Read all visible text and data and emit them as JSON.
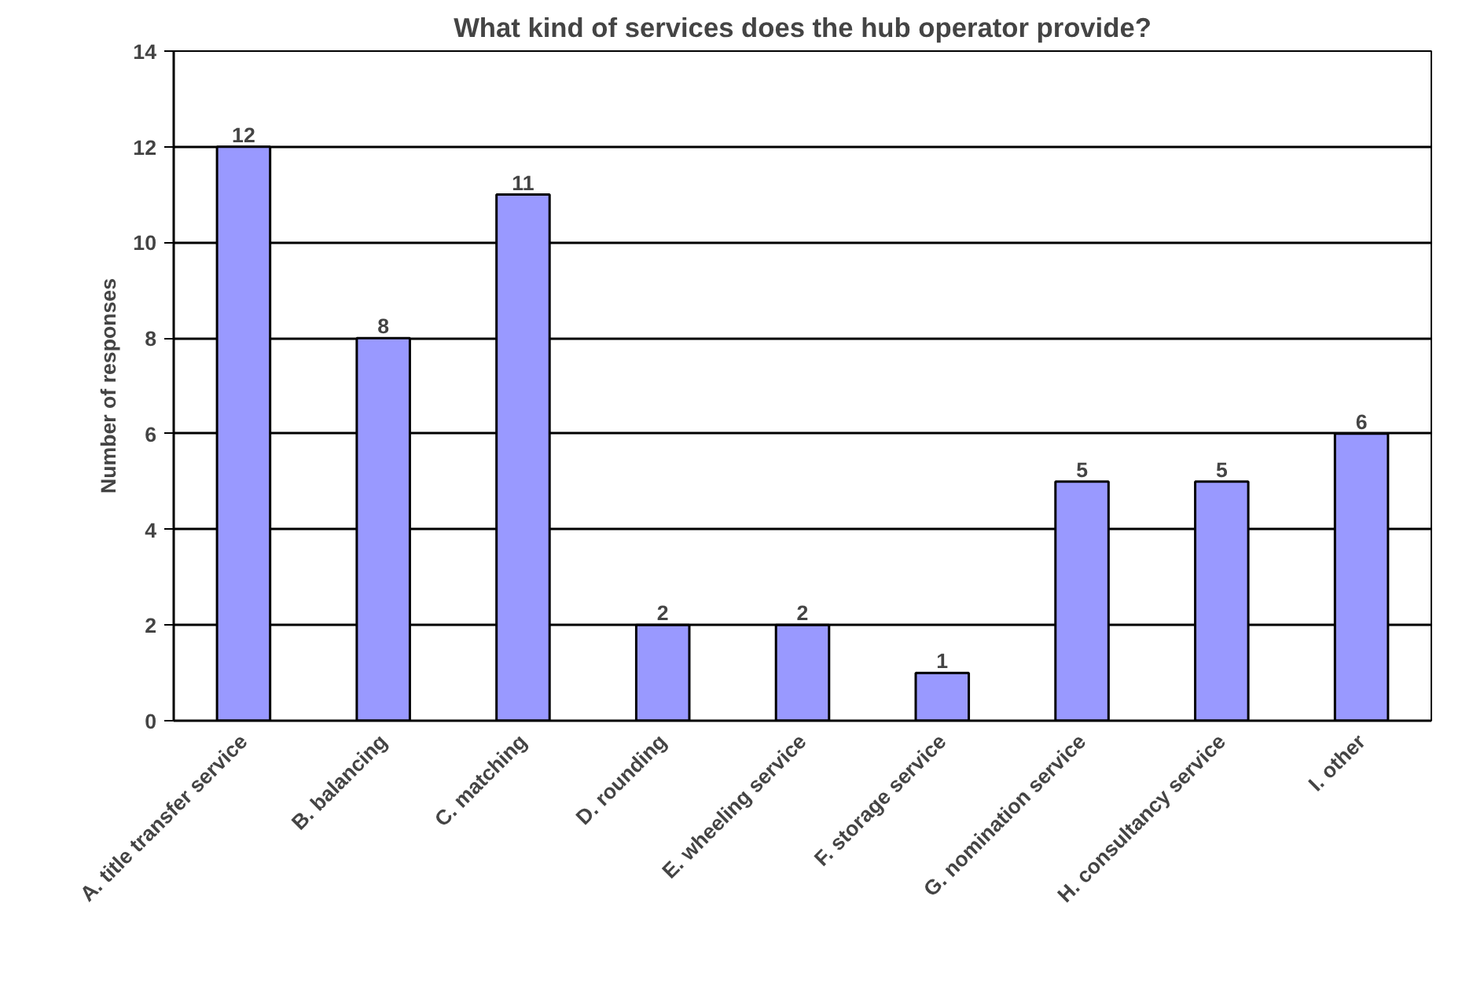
{
  "chart_data": {
    "type": "bar",
    "title": "What kind of services does the hub operator provide?",
    "ylabel": "Number of responses",
    "categories": [
      "A. title transfer service",
      "B. balancing",
      "C. matching",
      "D. rounding",
      "E. wheeling service",
      "F. storage service",
      "G. nomination service",
      "H. consultancy service",
      "I. other"
    ],
    "values": [
      12,
      8,
      11,
      2,
      2,
      1,
      5,
      5,
      6
    ],
    "color": "#9999ff",
    "ylim": [
      0,
      14
    ],
    "yticks": [
      0,
      2,
      4,
      6,
      8,
      10,
      12,
      14
    ],
    "grid": "y",
    "data_labels": true
  }
}
